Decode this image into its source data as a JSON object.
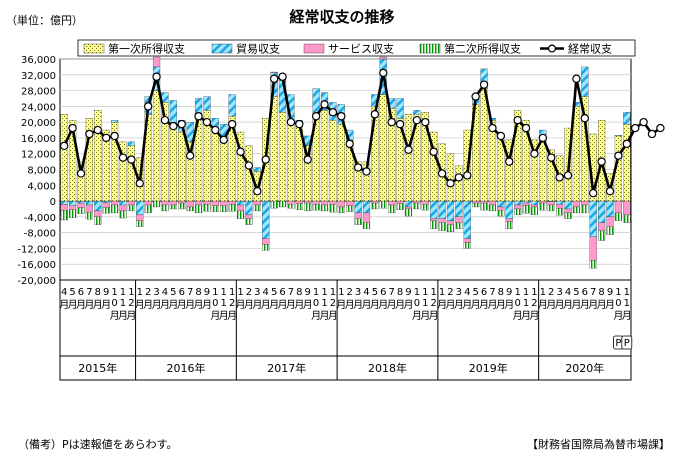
{
  "chart_data": {
    "type": "bar",
    "title": "経常収支の推移",
    "unit_label": "（単位：億円）",
    "note": "（備考）Pは速報値をあらわす。",
    "source": "【財務省国際局為替市場課】",
    "preliminary_mark": "P",
    "ylim": [
      -20000,
      36000
    ],
    "yticks": [
      "36,000",
      "32,000",
      "28,000",
      "24,000",
      "20,000",
      "16,000",
      "12,000",
      "8,000",
      "4,000",
      "0",
      "-4,000",
      "-8,000",
      "-12,000",
      "-16,000",
      "-20,000"
    ],
    "ytick_values": [
      36000,
      32000,
      28000,
      24000,
      20000,
      16000,
      12000,
      8000,
      4000,
      0,
      -4000,
      -8000,
      -12000,
      -16000,
      -20000
    ],
    "grid": true,
    "legend_position": "top",
    "years": [
      {
        "label": "2015年",
        "months": [
          "4",
          "5",
          "6",
          "7",
          "8",
          "9",
          "10",
          "11",
          "12"
        ]
      },
      {
        "label": "2016年",
        "months": [
          "1",
          "2",
          "3",
          "4",
          "5",
          "6",
          "7",
          "8",
          "9",
          "10",
          "11",
          "12"
        ]
      },
      {
        "label": "2017年",
        "months": [
          "1",
          "2",
          "3",
          "4",
          "5",
          "6",
          "7",
          "8",
          "9",
          "10",
          "11",
          "12"
        ]
      },
      {
        "label": "2018年",
        "months": [
          "1",
          "2",
          "3",
          "4",
          "5",
          "6",
          "7",
          "8",
          "9",
          "10",
          "11",
          "12"
        ]
      },
      {
        "label": "2019年",
        "months": [
          "1",
          "2",
          "3",
          "4",
          "5",
          "6",
          "7",
          "8",
          "9",
          "10",
          "11",
          "12"
        ]
      },
      {
        "label": "2020年",
        "months": [
          "1",
          "2",
          "3",
          "4",
          "5",
          "6",
          "7",
          "8",
          "9",
          "10",
          "11"
        ]
      }
    ],
    "month_suffix": "月",
    "series": [
      {
        "name": "第一次所得収支",
        "kind": "bar",
        "color": "#ffff99",
        "values": [
          22000,
          20500,
          10000,
          21000,
          23000,
          18000,
          20000,
          15000,
          14000,
          11000,
          22000,
          28000,
          25000,
          19500,
          17500,
          15000,
          21000,
          23000,
          17500,
          16000,
          21500,
          17500,
          14000,
          7500,
          21000,
          26500,
          22500,
          20500,
          19000,
          14000,
          22000,
          23000,
          20500,
          19500,
          15500,
          10000,
          10000,
          24000,
          27000,
          23500,
          21000,
          22000,
          22000,
          22500,
          17500,
          14500,
          12000,
          9000,
          18000,
          24500,
          28500,
          20500,
          17000,
          15500,
          23000,
          20500,
          15500,
          16500,
          13000,
          11500,
          18500,
          24000,
          26500,
          17000,
          20500,
          7000,
          16500,
          19500,
          17000,
          15000,
          14500,
          18500
        ]
      },
      {
        "name": "貿易収支",
        "kind": "bar",
        "color": "#33ccff",
        "values": [
          -800,
          -1200,
          -500,
          -1000,
          -2500,
          -400,
          500,
          -1000,
          1000,
          -3500,
          4500,
          6000,
          2500,
          6000,
          3000,
          5000,
          5000,
          3500,
          3500,
          3500,
          5500,
          -1000,
          -3500,
          1000,
          -9500,
          6000,
          8000,
          6500,
          1500,
          2500,
          6500,
          4500,
          4500,
          5000,
          2500,
          -3000,
          -3000,
          3000,
          9000,
          2500,
          5000,
          -1500,
          1000,
          0,
          -4500,
          -4500,
          -5000,
          -4000,
          -9500,
          1500,
          5000,
          500,
          -1500,
          -4500,
          -1000,
          -500,
          -1000,
          1500,
          -200,
          -800,
          -2000,
          1000,
          7500,
          -9000,
          -5500,
          -4000,
          200,
          3000,
          7500,
          9500,
          8000,
          5000
        ]
      },
      {
        "name": "サービス収支",
        "kind": "bar",
        "color": "#ff99cc",
        "values": [
          -1500,
          -1000,
          -1200,
          -1800,
          -1500,
          -1200,
          -1000,
          -1500,
          -1000,
          -1500,
          -1000,
          2500,
          -1000,
          -1000,
          -500,
          -1500,
          -1000,
          -800,
          -1200,
          -1200,
          -800,
          -1500,
          -1000,
          -1000,
          -1500,
          200,
          1000,
          -800,
          -700,
          -500,
          -800,
          -1000,
          -800,
          -1500,
          -1200,
          -1500,
          -2500,
          -500,
          500,
          -1000,
          -700,
          -500,
          -500,
          -800,
          -500,
          -1000,
          -1000,
          -1500,
          -1000,
          -500,
          -500,
          -1000,
          -800,
          -700,
          -1000,
          -600,
          -500,
          -500,
          -800,
          -1000,
          -1000,
          -1500,
          -1000,
          -6000,
          -2000,
          -2500,
          -3000,
          -3500,
          -3000,
          -2000,
          -2000,
          -1500
        ]
      },
      {
        "name": "第二次所得収支",
        "kind": "bar",
        "color": "#00cc00",
        "values": [
          -2500,
          -2000,
          -1500,
          -1800,
          -2000,
          -1500,
          -2000,
          -1800,
          -1500,
          -1500,
          -2000,
          -1500,
          -1500,
          -1000,
          -1500,
          -1000,
          -2000,
          -1800,
          -1500,
          -1500,
          -1800,
          -2000,
          -1500,
          -1500,
          -1500,
          -1800,
          -1500,
          -1000,
          -1500,
          -2000,
          -1500,
          -1500,
          -2000,
          -1500,
          -1500,
          -1500,
          -1500,
          -1500,
          -1800,
          -2000,
          -1500,
          -1800,
          -1500,
          -1500,
          -2000,
          -2000,
          -1800,
          -1500,
          -1500,
          -1000,
          -1800,
          -1500,
          -1500,
          -1800,
          -1500,
          -2000,
          -2000,
          -1800,
          -1500,
          -1800,
          -1500,
          -1500,
          -2000,
          -2000,
          -2500,
          -2000,
          -2000,
          -2000,
          -4000,
          -2500,
          -3000,
          -2000
        ]
      },
      {
        "name": "経常収支",
        "kind": "line",
        "color": "#000000",
        "values": [
          14000,
          18500,
          7000,
          17000,
          18000,
          16000,
          16500,
          11000,
          10500,
          4500,
          24000,
          31500,
          20500,
          19000,
          19500,
          11500,
          21500,
          20000,
          18000,
          15500,
          19500,
          12500,
          9000,
          2500,
          10500,
          31000,
          31500,
          20000,
          19500,
          10500,
          21500,
          24500,
          22500,
          21500,
          14500,
          8500,
          7500,
          22000,
          32500,
          20000,
          19500,
          13000,
          20500,
          20000,
          12500,
          7000,
          4500,
          6000,
          6500,
          26500,
          29500,
          18500,
          16500,
          10000,
          20500,
          18500,
          12000,
          16000,
          11000,
          6000,
          6500,
          31000,
          21000,
          2000,
          10000,
          2500,
          11500,
          14500,
          18500,
          20000,
          17000,
          18500
        ]
      }
    ]
  }
}
